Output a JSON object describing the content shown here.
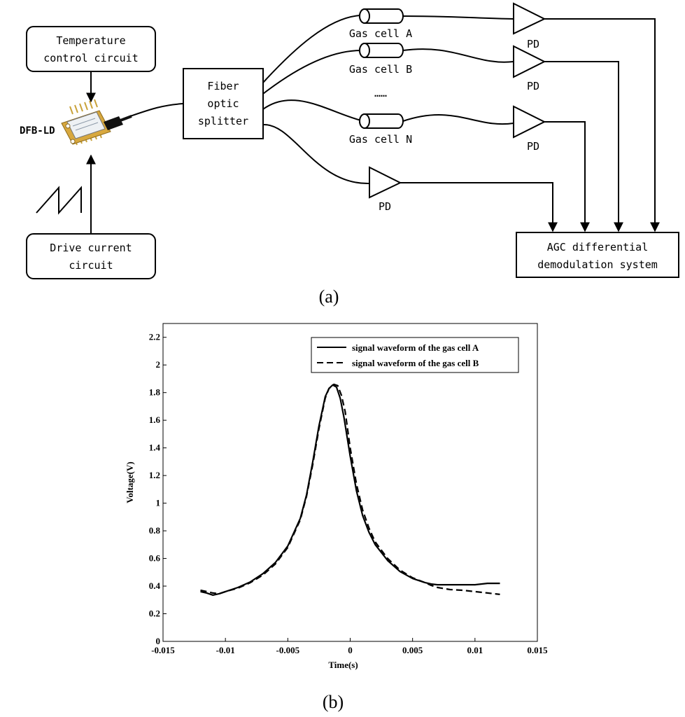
{
  "diagram": {
    "temperature_box": {
      "line1": "Temperature",
      "line2": "control circuit"
    },
    "drive_box": {
      "line1": "Drive current",
      "line2": "circuit"
    },
    "laser_label": "DFB-LD",
    "splitter": {
      "line1": "Fiber",
      "line2": "optic",
      "line3": "splitter"
    },
    "gas_cells": [
      "Gas cell A",
      "Gas cell B",
      "Gas cell N"
    ],
    "ellipsis": "……",
    "pd_label": "PD",
    "agc_box": {
      "line1": "AGC differential",
      "line2": "demodulation system"
    },
    "panel_a": "(a)",
    "panel_b": "(b)"
  },
  "chart_data": {
    "type": "line",
    "xlabel": "Time(s)",
    "ylabel": "Voltage(V)",
    "xlim": [
      -0.015,
      0.015
    ],
    "ylim": [
      0,
      2.3
    ],
    "xticks": [
      -0.015,
      -0.01,
      -0.005,
      0,
      0.005,
      0.01,
      0.015
    ],
    "xtick_labels": [
      "-0.015",
      "-0.01",
      "-0.005",
      "0",
      "0.005",
      "0.01",
      "0.015"
    ],
    "yticks": [
      0,
      0.2,
      0.4,
      0.6,
      0.8,
      1,
      1.2,
      1.4,
      1.6,
      1.8,
      2,
      2.2
    ],
    "ytick_labels": [
      "0",
      "0.2",
      "0.4",
      "0.6",
      "0.8",
      "1",
      "1.2",
      "1.4",
      "1.6",
      "1.8",
      "2",
      "2.2"
    ],
    "legend_position": "top-right",
    "series": [
      {
        "name": "signal waveform of the gas cell A",
        "style": "solid",
        "x": [
          -0.012,
          -0.0115,
          -0.011,
          -0.0105,
          -0.01,
          -0.009,
          -0.008,
          -0.007,
          -0.006,
          -0.005,
          -0.004,
          -0.0035,
          -0.003,
          -0.0025,
          -0.002,
          -0.0017,
          -0.0014,
          -0.0011,
          -0.0008,
          -0.0005,
          0,
          0.0005,
          0.001,
          0.0015,
          0.002,
          0.003,
          0.004,
          0.005,
          0.006,
          0.0065,
          0.007,
          0.008,
          0.009,
          0.01,
          0.011,
          0.012
        ],
        "y": [
          0.36,
          0.35,
          0.335,
          0.345,
          0.36,
          0.39,
          0.43,
          0.49,
          0.57,
          0.69,
          0.89,
          1.06,
          1.3,
          1.56,
          1.77,
          1.83,
          1.855,
          1.84,
          1.76,
          1.62,
          1.34,
          1.09,
          0.91,
          0.79,
          0.7,
          0.585,
          0.505,
          0.455,
          0.425,
          0.415,
          0.41,
          0.41,
          0.41,
          0.41,
          0.42,
          0.42
        ]
      },
      {
        "name": "signal waveform of the gas cell B",
        "style": "dashed",
        "x": [
          -0.012,
          -0.0115,
          -0.011,
          -0.0105,
          -0.01,
          -0.009,
          -0.008,
          -0.007,
          -0.006,
          -0.005,
          -0.004,
          -0.0035,
          -0.003,
          -0.0025,
          -0.002,
          -0.0017,
          -0.0013,
          -0.001,
          -0.0007,
          -0.0004,
          0,
          0.0005,
          0.001,
          0.0015,
          0.002,
          0.003,
          0.004,
          0.005,
          0.006,
          0.0065,
          0.007,
          0.008,
          0.009,
          0.01,
          0.011,
          0.012
        ],
        "y": [
          0.37,
          0.36,
          0.35,
          0.345,
          0.36,
          0.385,
          0.425,
          0.48,
          0.56,
          0.68,
          0.88,
          1.05,
          1.28,
          1.54,
          1.76,
          1.83,
          1.86,
          1.85,
          1.78,
          1.66,
          1.4,
          1.14,
          0.95,
          0.82,
          0.72,
          0.6,
          0.515,
          0.46,
          0.425,
          0.405,
          0.39,
          0.375,
          0.37,
          0.36,
          0.35,
          0.34
        ]
      }
    ]
  }
}
